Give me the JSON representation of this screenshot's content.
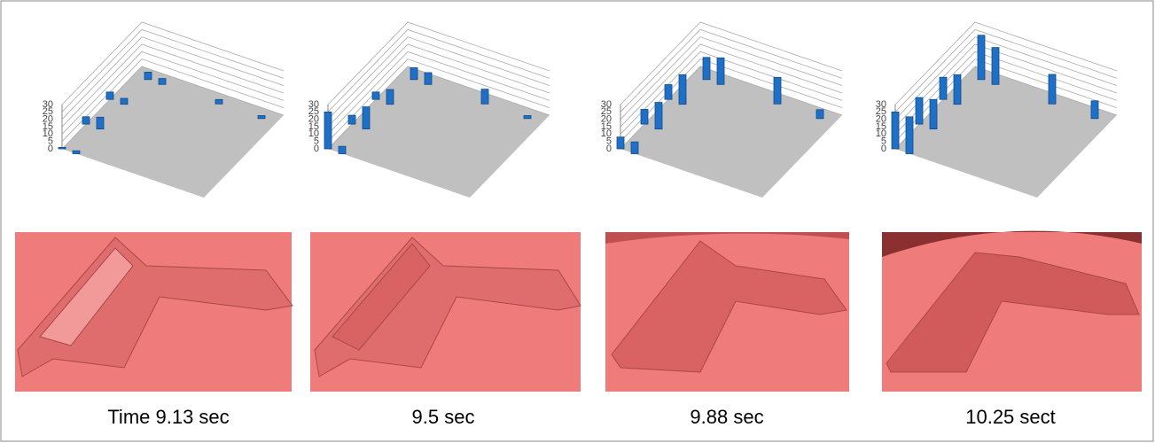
{
  "chart_data": [
    {
      "type": "bar3d",
      "caption": "Time  9.13 sec",
      "color": "#1f6fc5",
      "x": [
        0,
        1,
        0,
        1,
        0,
        1,
        1,
        2,
        6,
        9
      ],
      "z": [
        0,
        0,
        3,
        3,
        6,
        6,
        9,
        9,
        9,
        9
      ],
      "values": [
        1,
        2,
        5,
        8,
        5,
        4,
        5,
        4,
        3,
        2
      ],
      "ylim": [
        0,
        30
      ],
      "yticks": [
        0,
        5,
        10,
        15,
        20,
        25,
        30
      ]
    },
    {
      "type": "bar3d",
      "caption": "9.5 sec",
      "color": "#1f6fc5",
      "x": [
        0,
        1,
        0,
        1,
        0,
        1,
        1,
        2,
        6,
        9
      ],
      "z": [
        0,
        0,
        3,
        3,
        6,
        6,
        9,
        9,
        9,
        9
      ],
      "values": [
        25,
        5,
        6,
        15,
        5,
        10,
        8,
        8,
        10,
        2
      ],
      "ylim": [
        0,
        30
      ],
      "yticks": [
        0,
        5,
        10,
        15,
        20,
        25,
        30
      ]
    },
    {
      "type": "bar3d",
      "caption": "9.88 sec",
      "color": "#1f6fc5",
      "x": [
        0,
        1,
        0,
        1,
        0,
        1,
        1,
        2,
        6,
        9
      ],
      "z": [
        0,
        0,
        3,
        3,
        6,
        6,
        9,
        9,
        9,
        9
      ],
      "values": [
        8,
        8,
        10,
        18,
        10,
        20,
        15,
        18,
        18,
        6
      ],
      "ylim": [
        0,
        30
      ],
      "yticks": [
        0,
        5,
        10,
        15,
        20,
        25,
        30
      ]
    },
    {
      "type": "bar3d",
      "caption": "10.25 sect",
      "color": "#1f6fc5",
      "x": [
        0,
        1,
        0,
        1,
        0,
        1,
        1,
        2,
        6,
        9
      ],
      "z": [
        0,
        0,
        3,
        3,
        6,
        6,
        9,
        9,
        9,
        9
      ],
      "values": [
        25,
        25,
        18,
        20,
        15,
        20,
        30,
        25,
        20,
        12
      ],
      "ylim": [
        0,
        30
      ],
      "yticks": [
        0,
        5,
        10,
        15,
        20,
        25,
        30
      ]
    }
  ]
}
